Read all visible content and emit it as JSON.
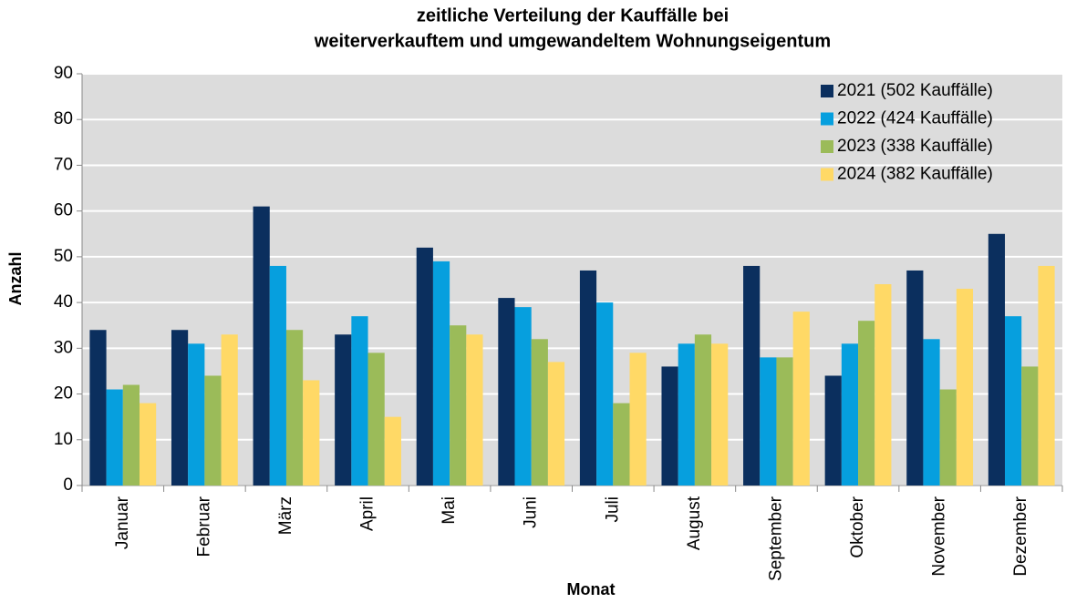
{
  "chart_data": {
    "type": "bar",
    "title": [
      "zeitliche Verteilung der Kauffälle bei",
      "weiterverkauftem und umgewandeltem Wohnungseigentum"
    ],
    "x_label": "Monat",
    "y_label": "Anzahl",
    "categories": [
      "Januar",
      "Februar",
      "März",
      "April",
      "Mai",
      "Juni",
      "Juli",
      "August",
      "September",
      "Oktober",
      "November",
      "Dezember"
    ],
    "series": [
      {
        "name": "2021 (502 Kauffälle)",
        "color": "#0b2f5e",
        "values": [
          34,
          34,
          61,
          33,
          52,
          41,
          47,
          26,
          48,
          24,
          47,
          55
        ]
      },
      {
        "name": "2022 (424 Kauffälle)",
        "color": "#069fde",
        "values": [
          21,
          31,
          48,
          37,
          49,
          39,
          40,
          31,
          28,
          31,
          32,
          37
        ]
      },
      {
        "name": "2023 (338 Kauffälle)",
        "color": "#9bbb59",
        "values": [
          22,
          24,
          34,
          29,
          35,
          32,
          18,
          33,
          28,
          36,
          21,
          26
        ]
      },
      {
        "name": "2024 (382 Kauffälle)",
        "color": "#ffd966",
        "values": [
          18,
          33,
          23,
          15,
          33,
          27,
          29,
          31,
          38,
          44,
          43,
          48
        ]
      }
    ],
    "ylim": [
      0,
      90
    ],
    "yticks": [
      0,
      10,
      20,
      30,
      40,
      50,
      60,
      70,
      80,
      90
    ],
    "grid": true,
    "legend": "upper right"
  }
}
